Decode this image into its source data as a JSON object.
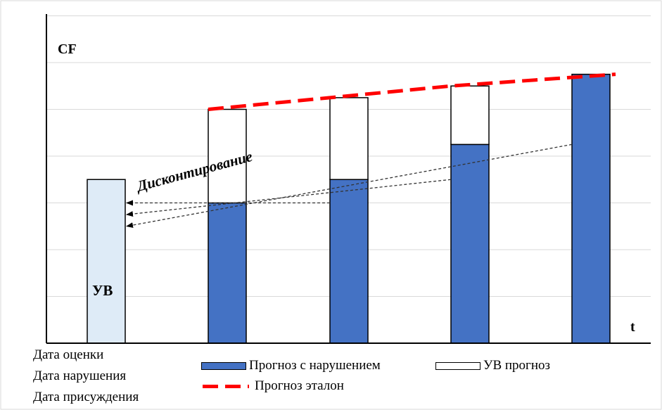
{
  "chart_data": {
    "type": "bar",
    "stacked": true,
    "y_axis_label": "CF",
    "x_axis_label": "t",
    "y_range": [
      0,
      7
    ],
    "grid": true,
    "categories": [
      "",
      "",
      "",
      "",
      ""
    ],
    "series": [
      {
        "name": "Прогноз с нарушением",
        "color": "#4472C4",
        "values": [
          0,
          3,
          3.5,
          4.25,
          5.75
        ]
      },
      {
        "name": "УВ прогноз",
        "color": "#FFFFFF",
        "values": [
          0,
          2,
          1.75,
          1.25,
          0
        ]
      },
      {
        "name": "УВ",
        "color": "#DEEBF7",
        "values": [
          3.5,
          0,
          0,
          0,
          0
        ]
      }
    ],
    "reference_line": {
      "name": "Прогноз эталон",
      "color": "#FF0000",
      "style": "dashed",
      "points": [
        [
          1,
          5
        ],
        [
          2,
          5.25
        ],
        [
          3,
          5.5
        ],
        [
          4,
          5.75
        ]
      ]
    },
    "annotation": {
      "text": "Дисконтирование",
      "arrows": [
        {
          "from_category": 2,
          "from_value": 3.0,
          "to_category": 0,
          "to_value": 3.0
        },
        {
          "from_category": 3,
          "from_value": 3.5,
          "to_category": 0,
          "to_value": 2.75
        },
        {
          "from_category": 4,
          "from_value": 4.25,
          "to_category": 0,
          "to_value": 2.5
        }
      ]
    },
    "bar_inner_label": "УВ"
  },
  "x_labels": [
    "Дата оценки",
    "Дата нарушения",
    "Дата присуждения"
  ],
  "legend": {
    "items": [
      {
        "label": "Прогноз с нарушением",
        "kind": "box",
        "color": "#4472C4"
      },
      {
        "label": "УВ прогноз",
        "kind": "box",
        "color": "#FFFFFF"
      },
      {
        "label": "Прогноз эталон",
        "kind": "dash",
        "color": "#FF0000"
      }
    ]
  }
}
